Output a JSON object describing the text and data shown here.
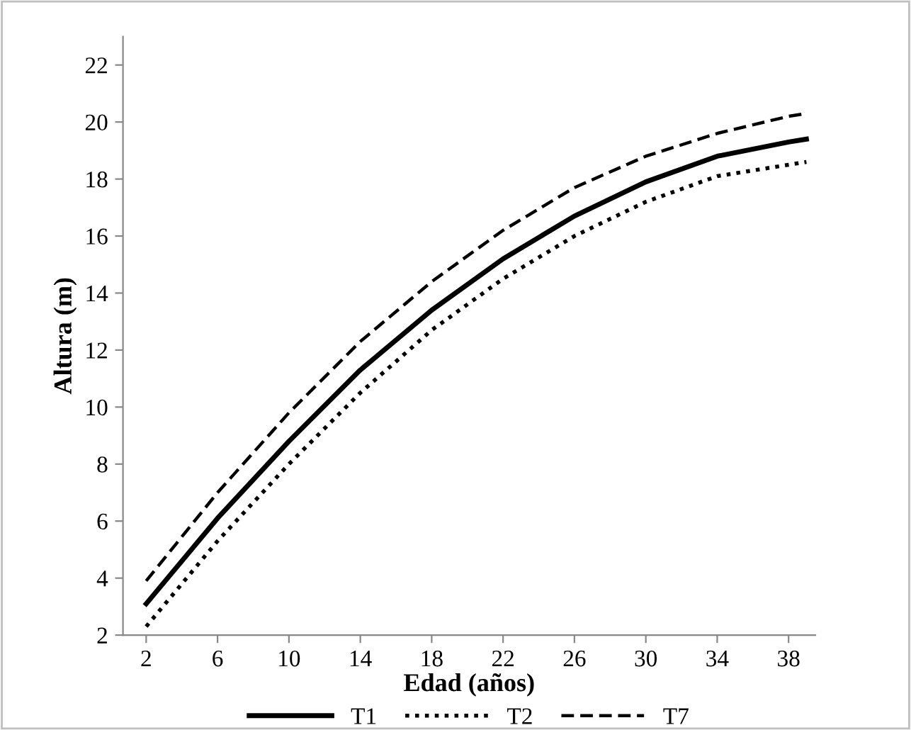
{
  "chart_data": {
    "type": "line",
    "xlabel": "Edad (años)",
    "ylabel": "Altura (m)",
    "x": [
      2,
      6,
      10,
      14,
      18,
      22,
      26,
      30,
      34,
      38,
      39
    ],
    "series": [
      {
        "name": "T1",
        "color": "#000000",
        "line_style": "solid",
        "values": [
          3.1,
          6.1,
          8.8,
          11.3,
          13.4,
          15.2,
          16.7,
          17.9,
          18.8,
          19.3,
          19.4
        ]
      },
      {
        "name": "T2",
        "color": "#000000",
        "line_style": "dotted",
        "values": [
          2.3,
          5.3,
          8.0,
          10.5,
          12.7,
          14.5,
          16.0,
          17.2,
          18.1,
          18.5,
          18.6
        ]
      },
      {
        "name": "T7",
        "color": "#000000",
        "line_style": "dashed",
        "values": [
          3.9,
          7.0,
          9.8,
          12.3,
          14.4,
          16.2,
          17.7,
          18.8,
          19.6,
          20.2,
          20.3
        ]
      }
    ],
    "xlim": [
      0.7,
      39.5
    ],
    "xticks": [
      2,
      6,
      10,
      14,
      18,
      22,
      26,
      30,
      34,
      38
    ],
    "ylim": [
      2,
      23
    ],
    "yticks": [
      2,
      4,
      6,
      8,
      10,
      12,
      14,
      16,
      18,
      20,
      22
    ],
    "grid": false,
    "legend": "bottom",
    "marker": "none"
  }
}
